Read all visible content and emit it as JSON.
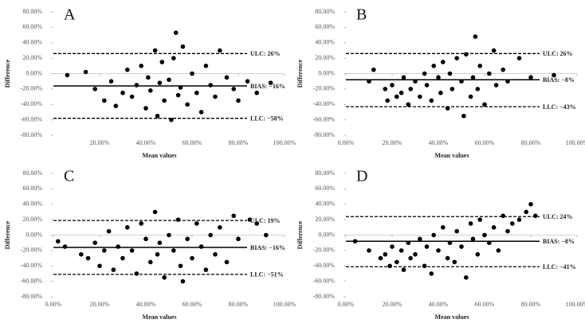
{
  "chart_data": [
    {
      "type": "scatter",
      "panel": "A",
      "x_label": "Mean values",
      "y_label": "Difference",
      "color": "#000000",
      "xlim": [
        0,
        100
      ],
      "ylim": [
        -80,
        80
      ],
      "xticks": [
        {
          "value": 20,
          "label": "20.00%"
        },
        {
          "value": 40,
          "label": "40.00%"
        },
        {
          "value": 60,
          "label": "60.00%"
        },
        {
          "value": 80,
          "label": "80.00%"
        },
        {
          "value": 100,
          "label": "100.00%"
        }
      ],
      "yticks": [
        {
          "value": -80,
          "label": "-80.00%"
        },
        {
          "value": -60,
          "label": "-60.00%"
        },
        {
          "value": -40,
          "label": "-40.00%"
        },
        {
          "value": -20,
          "label": "-20.00%"
        },
        {
          "value": 0,
          "label": "0.00%"
        },
        {
          "value": 20,
          "label": "20.00%"
        },
        {
          "value": 40,
          "label": "40.00%"
        },
        {
          "value": 60,
          "label": "60.00%"
        },
        {
          "value": 80,
          "label": "80.00%"
        }
      ],
      "lines": [
        {
          "label": "ULC: 26%",
          "value": 26,
          "style": "dashed"
        },
        {
          "label": "BIAS: −16%",
          "value": -16,
          "style": "solid"
        },
        {
          "label": "LLC: −58%",
          "value": -58,
          "style": "dashed"
        }
      ],
      "x": [
        6,
        14,
        18,
        22,
        25,
        27,
        30,
        32,
        34,
        36,
        38,
        40,
        41,
        42,
        44,
        45,
        46,
        47,
        48,
        50,
        51,
        52,
        53,
        54,
        55,
        56,
        58,
        60,
        62,
        64,
        66,
        68,
        70,
        72,
        75,
        78,
        80,
        84,
        88,
        94
      ],
      "values": [
        -2,
        2,
        -20,
        -35,
        -10,
        -42,
        -25,
        5,
        -30,
        -15,
        10,
        -45,
        -5,
        -22,
        30,
        -55,
        -12,
        15,
        -35,
        -8,
        -60,
        20,
        53,
        -28,
        -18,
        35,
        -40,
        0,
        -25,
        -50,
        10,
        -15,
        -30,
        30,
        -5,
        -20,
        -35,
        -10,
        -25,
        -12
      ]
    },
    {
      "type": "scatter",
      "panel": "B",
      "x_label": "Mean values",
      "y_label": "Difference",
      "color": "#000000",
      "xlim": [
        0,
        100
      ],
      "ylim": [
        -80,
        80
      ],
      "xticks": [
        {
          "value": 0,
          "label": "0.00%"
        },
        {
          "value": 20,
          "label": "20.00%"
        },
        {
          "value": 40,
          "label": "40.00%"
        },
        {
          "value": 60,
          "label": "60.00%"
        },
        {
          "value": 80,
          "label": "80.00%"
        },
        {
          "value": 100,
          "label": "100.00%"
        }
      ],
      "yticks": [
        {
          "value": -80,
          "label": "-80.00%"
        },
        {
          "value": -60,
          "label": "-60.00%"
        },
        {
          "value": -40,
          "label": "-40.00%"
        },
        {
          "value": -20,
          "label": "-20.00%"
        },
        {
          "value": 0,
          "label": "0.00%"
        },
        {
          "value": 20,
          "label": "20.00%"
        },
        {
          "value": 40,
          "label": "40.00%"
        },
        {
          "value": 60,
          "label": "60.00%"
        },
        {
          "value": 80,
          "label": "80.00%"
        }
      ],
      "lines": [
        {
          "label": "ULC: 26%",
          "value": 26,
          "style": "dashed"
        },
        {
          "label": "BIAS: −8%",
          "value": -8,
          "style": "solid"
        },
        {
          "label": "LLC: −43%",
          "value": -43,
          "style": "dashed"
        }
      ],
      "x": [
        10,
        12,
        17,
        18,
        20,
        22,
        24,
        25,
        27,
        28,
        30,
        32,
        34,
        35,
        37,
        38,
        40,
        41,
        42,
        44,
        45,
        46,
        48,
        50,
        51,
        52,
        54,
        55,
        56,
        57,
        58,
        60,
        62,
        64,
        65,
        68,
        70,
        75,
        80,
        90
      ],
      "values": [
        -10,
        5,
        -20,
        -35,
        -15,
        -30,
        -25,
        -5,
        -40,
        -20,
        -10,
        -30,
        0,
        -15,
        -35,
        10,
        -5,
        -25,
        15,
        -45,
        0,
        -20,
        20,
        -10,
        -55,
        25,
        -30,
        -5,
        48,
        -20,
        10,
        -40,
        0,
        30,
        -15,
        5,
        -10,
        20,
        -5,
        -2
      ]
    },
    {
      "type": "scatter",
      "panel": "C",
      "x_label": "Mean values",
      "y_label": "Difference",
      "color": "#000000",
      "xlim": [
        0,
        100
      ],
      "ylim": [
        -80,
        80
      ],
      "xticks": [
        {
          "value": 0,
          "label": "0.00%"
        },
        {
          "value": 20,
          "label": "20.00%"
        },
        {
          "value": 40,
          "label": "40.00%"
        },
        {
          "value": 60,
          "label": "60.00%"
        },
        {
          "value": 80,
          "label": "80.00%"
        },
        {
          "value": 100,
          "label": "100.00%"
        }
      ],
      "yticks": [
        {
          "value": -80,
          "label": "-80.00%"
        },
        {
          "value": -60,
          "label": "-60.00%"
        },
        {
          "value": -40,
          "label": "-40.00%"
        },
        {
          "value": -20,
          "label": "-20.00%"
        },
        {
          "value": 0,
          "label": "0.00%"
        },
        {
          "value": 20,
          "label": "20.00%"
        },
        {
          "value": 40,
          "label": "40.00%"
        },
        {
          "value": 60,
          "label": "60.00%"
        },
        {
          "value": 80,
          "label": "80.00%"
        }
      ],
      "lines": [
        {
          "label": "ULC: 19%",
          "value": 19,
          "style": "dashed"
        },
        {
          "label": "BIAS: −16%",
          "value": -16,
          "style": "solid"
        },
        {
          "label": "LLC: −51%",
          "value": -51,
          "style": "dashed"
        }
      ],
      "x": [
        2,
        5,
        12,
        15,
        18,
        20,
        22,
        24,
        26,
        28,
        30,
        32,
        34,
        36,
        38,
        40,
        42,
        44,
        45,
        46,
        48,
        50,
        52,
        54,
        55,
        56,
        58,
        60,
        62,
        64,
        66,
        68,
        70,
        72,
        75,
        78,
        80,
        85,
        88,
        92
      ],
      "values": [
        -8,
        -15,
        -25,
        -30,
        -10,
        -40,
        -20,
        5,
        -45,
        -15,
        -30,
        10,
        -20,
        -50,
        15,
        -5,
        -35,
        30,
        -25,
        -10,
        -55,
        0,
        -20,
        20,
        -40,
        -60,
        -5,
        -30,
        15,
        -15,
        -45,
        0,
        -25,
        10,
        -35,
        25,
        -5,
        20,
        15,
        0
      ]
    },
    {
      "type": "scatter",
      "panel": "D",
      "x_label": "Mean values",
      "y_label": "Difference",
      "color": "#000000",
      "xlim": [
        0,
        100
      ],
      "ylim": [
        -80,
        80
      ],
      "xticks": [
        {
          "value": 0,
          "label": "0.00%"
        },
        {
          "value": 20,
          "label": "20.00%"
        },
        {
          "value": 40,
          "label": "40.00%"
        },
        {
          "value": 60,
          "label": "60.00%"
        },
        {
          "value": 80,
          "label": "80.00%"
        },
        {
          "value": 100,
          "label": "100.00%"
        }
      ],
      "yticks": [
        {
          "value": -80,
          "label": "-80.00%"
        },
        {
          "value": -60,
          "label": "-60.00%"
        },
        {
          "value": -40,
          "label": "-40.00%"
        },
        {
          "value": -20,
          "label": "-20.00%"
        },
        {
          "value": 0,
          "label": "0.00%"
        },
        {
          "value": 20,
          "label": "20.00%"
        },
        {
          "value": 40,
          "label": "40.00%"
        },
        {
          "value": 60,
          "label": "60.00%"
        },
        {
          "value": 80,
          "label": "80.00%"
        }
      ],
      "lines": [
        {
          "label": "ULC: 24%",
          "value": 24,
          "style": "dashed"
        },
        {
          "label": "BIAS: −8%",
          "value": -8,
          "style": "solid"
        },
        {
          "label": "LLC: −41%",
          "value": -41,
          "style": "dashed"
        }
      ],
      "x": [
        4,
        10,
        15,
        17,
        19,
        20,
        22,
        24,
        25,
        27,
        28,
        30,
        32,
        34,
        35,
        37,
        38,
        40,
        42,
        44,
        45,
        47,
        48,
        50,
        52,
        54,
        55,
        57,
        58,
        60,
        62,
        64,
        66,
        68,
        70,
        72,
        75,
        78,
        80,
        82
      ],
      "values": [
        -8,
        -20,
        -30,
        -25,
        -40,
        -15,
        -35,
        -20,
        -45,
        -10,
        -30,
        -25,
        -5,
        -40,
        -15,
        -50,
        0,
        -20,
        10,
        -30,
        -10,
        -35,
        5,
        -15,
        -55,
        15,
        -5,
        -25,
        20,
        0,
        -10,
        10,
        -20,
        25,
        5,
        15,
        20,
        30,
        40,
        25
      ]
    }
  ]
}
